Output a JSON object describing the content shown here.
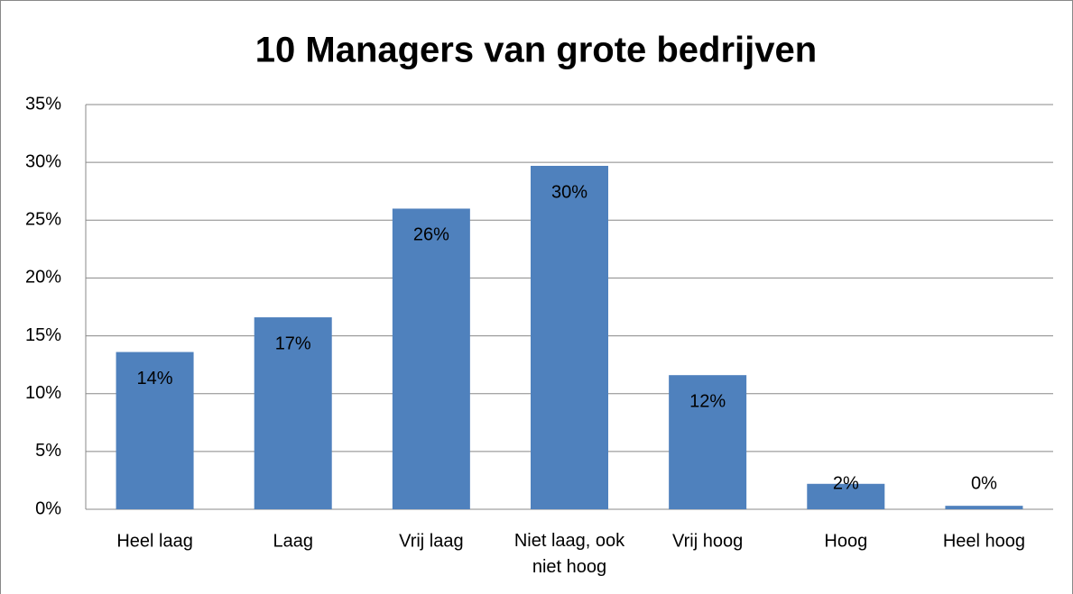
{
  "chart_data": {
    "type": "bar",
    "title": "10 Managers van grote bedrijven",
    "categories": [
      "Heel laag",
      "Laag",
      "Vrij laag",
      "Niet laag, ook niet hoog",
      "Vrij hoog",
      "Hoog",
      "Heel hoog"
    ],
    "values": [
      13.6,
      16.6,
      26,
      29.7,
      11.6,
      2.2,
      0.3
    ],
    "value_labels": [
      "14%",
      "17%",
      "26%",
      "30%",
      "12%",
      "2%",
      "0%"
    ],
    "color": "#4f81bd",
    "ylim": [
      0,
      35
    ],
    "yticks": [
      {
        "value": 0,
        "label": "0%"
      },
      {
        "value": 5,
        "label": "5%"
      },
      {
        "value": 10,
        "label": "10%"
      },
      {
        "value": 15,
        "label": "15%"
      },
      {
        "value": 20,
        "label": "20%"
      },
      {
        "value": 25,
        "label": "25%"
      },
      {
        "value": 30,
        "label": "30%"
      },
      {
        "value": 35,
        "label": "35%"
      }
    ],
    "grid": true
  }
}
